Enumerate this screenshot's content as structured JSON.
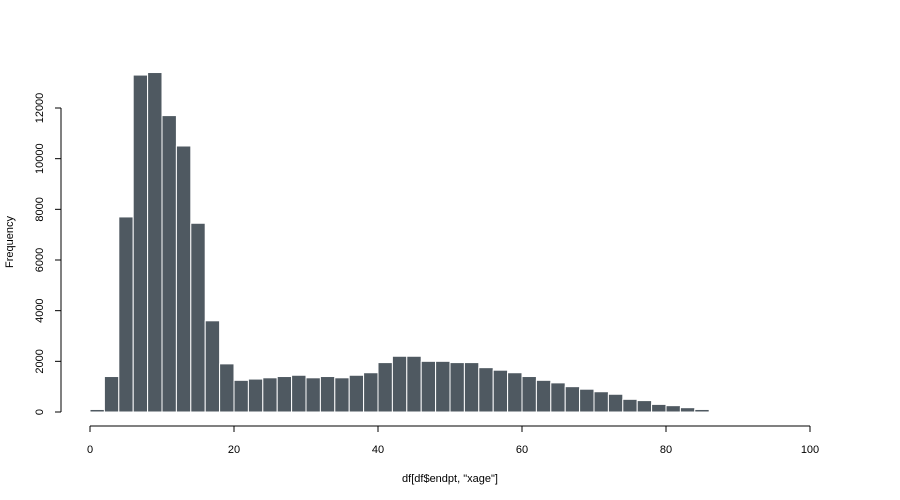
{
  "chart_data": {
    "type": "bar",
    "title": "",
    "xlabel": "df[df$endpt, \"xage\"]",
    "ylabel": "Frequency",
    "xlim": [
      0,
      100
    ],
    "ylim": [
      0,
      13500
    ],
    "bin_width": 2,
    "x_ticks": [
      0,
      20,
      40,
      60,
      80,
      100
    ],
    "y_ticks": [
      0,
      2000,
      4000,
      6000,
      8000,
      10000,
      12000
    ],
    "bar_color": "#4f5961",
    "bar_border_color": "#ffffff",
    "grid": false,
    "bins": [
      0,
      2,
      4,
      6,
      8,
      10,
      12,
      14,
      16,
      18,
      20,
      22,
      24,
      26,
      28,
      30,
      32,
      34,
      36,
      38,
      40,
      42,
      44,
      46,
      48,
      50,
      52,
      54,
      56,
      58,
      60,
      62,
      64,
      66,
      68,
      70,
      72,
      74,
      76,
      78,
      80,
      82,
      84
    ],
    "values": [
      100,
      1400,
      7700,
      13300,
      13400,
      11700,
      10500,
      7450,
      3600,
      1900,
      1250,
      1300,
      1350,
      1400,
      1450,
      1350,
      1400,
      1350,
      1450,
      1550,
      1950,
      2200,
      2200,
      2000,
      2000,
      1950,
      1950,
      1750,
      1650,
      1550,
      1400,
      1250,
      1150,
      1000,
      900,
      800,
      700,
      500,
      450,
      300,
      250,
      170,
      100
    ]
  }
}
